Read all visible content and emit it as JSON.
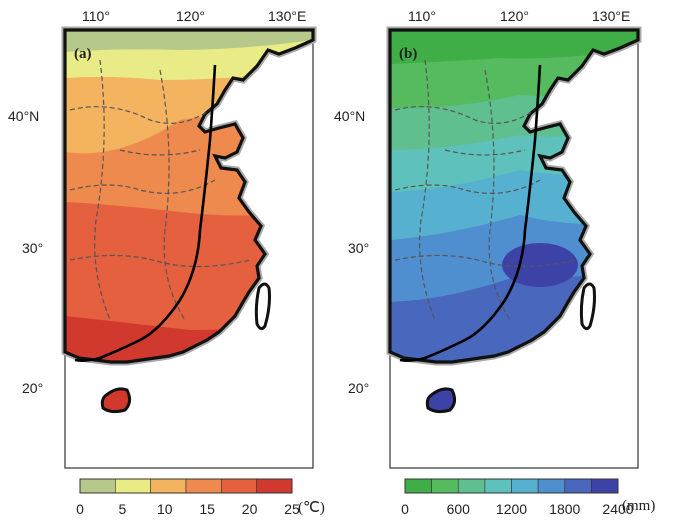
{
  "panel_a": {
    "label": "(a)",
    "lon_labels": [
      "110°",
      "120°",
      "130°E"
    ],
    "lat_labels": [
      "40°N",
      "30°",
      "20°"
    ],
    "colorbar": {
      "ticks": [
        "0",
        "5",
        "10",
        "15",
        "20",
        "25"
      ],
      "unit": "(℃)",
      "colors": [
        "#b7c98a",
        "#e9ec86",
        "#f4b35f",
        "#ee8a4d",
        "#e4603f",
        "#d2392e"
      ]
    }
  },
  "panel_b": {
    "label": "(b)",
    "lon_labels": [
      "110°",
      "120°",
      "130°E"
    ],
    "lat_labels": [
      "40°N",
      "30°",
      "20°"
    ],
    "colorbar": {
      "ticks": [
        "0",
        "600",
        "1200",
        "1800",
        "2400"
      ],
      "unit": "(mm)",
      "colors": [
        "#3fae47",
        "#55bb5e",
        "#5fbf8f",
        "#5fc1bb",
        "#56b1d0",
        "#4f8fcf",
        "#4867bd",
        "#3d43a6"
      ]
    }
  },
  "colors": {
    "land_outline": "#111111",
    "sea_halo": "#a8a8a8",
    "province_lines": "#555555",
    "boundary_line": "#000000"
  }
}
